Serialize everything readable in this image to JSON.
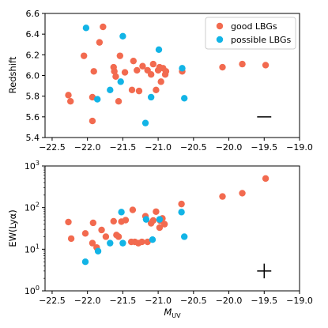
{
  "chart_data": [
    {
      "type": "scatter",
      "xlabel": "",
      "ylabel": "Redshift",
      "xlim": [
        -22.6,
        -19.0
      ],
      "ylim": [
        5.4,
        6.6
      ],
      "xscale": "linear",
      "yscale": "linear",
      "x_ticks": [
        -22.5,
        -22.0,
        -21.5,
        -21.0,
        -20.5,
        -20.0,
        -19.5,
        -19.0
      ],
      "x_tick_labels": [
        "−22.5",
        "−22.0",
        "−21.5",
        "−21.0",
        "−20.5",
        "−20.0",
        "−19.5",
        "−19.0"
      ],
      "y_ticks": [
        5.4,
        5.6,
        5.8,
        6.0,
        6.2,
        6.4,
        6.6
      ],
      "y_tick_labels": [
        "5.4",
        "5.6",
        "5.8",
        "6.0",
        "6.2",
        "6.4",
        "6.6"
      ],
      "grid": false,
      "legend": "top-right",
      "series": [
        {
          "name": "good LBGs",
          "color": "#f26a4f",
          "points": [
            [
              -22.27,
              5.81
            ],
            [
              -22.24,
              5.75
            ],
            [
              -22.05,
              6.19
            ],
            [
              -21.93,
              5.79
            ],
            [
              -21.93,
              5.56
            ],
            [
              -21.91,
              6.04
            ],
            [
              -21.83,
              6.32
            ],
            [
              -21.78,
              6.47
            ],
            [
              -21.63,
              6.08
            ],
            [
              -21.62,
              6.04
            ],
            [
              -21.6,
              5.99
            ],
            [
              -21.56,
              5.75
            ],
            [
              -21.54,
              6.19
            ],
            [
              -21.47,
              6.03
            ],
            [
              -21.37,
              5.86
            ],
            [
              -21.35,
              6.14
            ],
            [
              -21.3,
              6.05
            ],
            [
              -21.27,
              5.85
            ],
            [
              -21.22,
              6.09
            ],
            [
              -21.15,
              6.05
            ],
            [
              -21.1,
              6.01
            ],
            [
              -21.07,
              6.11
            ],
            [
              -21.03,
              5.86
            ],
            [
              -21.0,
              6.05
            ],
            [
              -20.98,
              6.08
            ],
            [
              -20.96,
              5.94
            ],
            [
              -20.93,
              6.07
            ],
            [
              -20.9,
              6.01
            ],
            [
              -20.89,
              6.04
            ],
            [
              -20.66,
              6.04
            ],
            [
              -20.09,
              6.08
            ],
            [
              -19.81,
              6.11
            ],
            [
              -19.48,
              6.1
            ]
          ]
        },
        {
          "name": "possible LBGs",
          "color": "#12b4e6",
          "points": [
            [
              -22.02,
              6.46
            ],
            [
              -21.86,
              5.77
            ],
            [
              -21.68,
              5.86
            ],
            [
              -21.53,
              5.94
            ],
            [
              -21.5,
              6.38
            ],
            [
              -21.18,
              5.54
            ],
            [
              -21.1,
              5.79
            ],
            [
              -20.99,
              6.25
            ],
            [
              -20.66,
              6.07
            ],
            [
              -20.63,
              5.78
            ]
          ]
        }
      ],
      "error_bar": {
        "x": -19.5,
        "y": 5.6,
        "xerr": 0.1,
        "yerr": 0.0
      }
    },
    {
      "type": "scatter",
      "xlabel": "M_UV",
      "ylabel": "EW(Lyα)",
      "xlim": [
        -22.6,
        -19.0
      ],
      "ylim": [
        1,
        1000
      ],
      "xscale": "linear",
      "yscale": "log",
      "x_ticks": [
        -22.5,
        -22.0,
        -21.5,
        -21.0,
        -20.5,
        -20.0,
        -19.5,
        -19.0
      ],
      "x_tick_labels": [
        "−22.5",
        "−22.0",
        "−21.5",
        "−21.0",
        "−20.5",
        "−20.0",
        "−19.5",
        "−19.0"
      ],
      "y_ticks": [
        1,
        10,
        100,
        1000
      ],
      "y_tick_labels": [
        {
          "base": "10",
          "exp": "0"
        },
        {
          "base": "10",
          "exp": "1"
        },
        {
          "base": "10",
          "exp": "2"
        },
        {
          "base": "10",
          "exp": "3"
        }
      ],
      "grid": false,
      "series": [
        {
          "name": "good LBGs",
          "color": "#f26a4f",
          "points": [
            [
              -22.27,
              45
            ],
            [
              -22.23,
              18
            ],
            [
              -22.03,
              24
            ],
            [
              -21.93,
              14
            ],
            [
              -21.92,
              43
            ],
            [
              -21.87,
              11
            ],
            [
              -21.8,
              29
            ],
            [
              -21.74,
              20
            ],
            [
              -21.63,
              47
            ],
            [
              -21.59,
              22
            ],
            [
              -21.56,
              20
            ],
            [
              -21.52,
              46
            ],
            [
              -21.46,
              50
            ],
            [
              -21.38,
              15
            ],
            [
              -21.36,
              88
            ],
            [
              -21.33,
              15
            ],
            [
              -21.28,
              14
            ],
            [
              -21.23,
              15
            ],
            [
              -21.18,
              62
            ],
            [
              -21.15,
              15
            ],
            [
              -21.1,
              42
            ],
            [
              -21.07,
              49
            ],
            [
              -21.03,
              80
            ],
            [
              -20.98,
              33
            ],
            [
              -20.97,
              48
            ],
            [
              -20.94,
              55
            ],
            [
              -20.91,
              40
            ],
            [
              -20.67,
              122
            ],
            [
              -20.09,
              185
            ],
            [
              -19.81,
              222
            ],
            [
              -19.48,
              500
            ]
          ]
        },
        {
          "name": "possible LBGs",
          "color": "#12b4e6",
          "points": [
            [
              -22.03,
              5
            ],
            [
              -21.85,
              9
            ],
            [
              -21.68,
              14
            ],
            [
              -21.52,
              78
            ],
            [
              -21.5,
              14
            ],
            [
              -21.17,
              52
            ],
            [
              -21.08,
              17
            ],
            [
              -20.98,
              52
            ],
            [
              -20.67,
              78
            ],
            [
              -20.63,
              20
            ]
          ]
        }
      ],
      "error_bar": {
        "x": -19.5,
        "y": 3,
        "xerr": 0.1,
        "yerr_factor": 1.5
      }
    }
  ]
}
